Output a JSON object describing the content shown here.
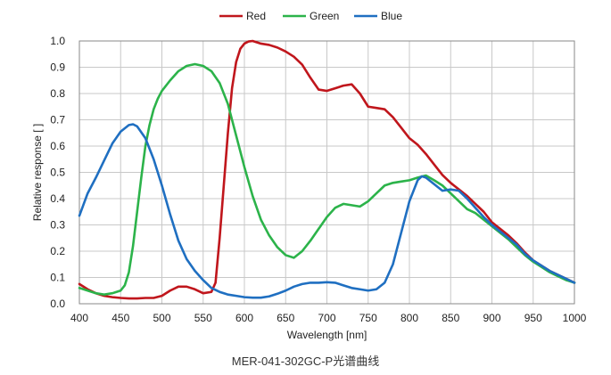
{
  "chart_data": {
    "type": "line",
    "title": "",
    "caption": "MER-041-302GC-P光谱曲线",
    "xlabel": "Wavelength [nm]",
    "ylabel": "Relative response [ ]",
    "xlim": [
      400,
      1000
    ],
    "ylim": [
      0.0,
      1.0
    ],
    "xticks": [
      400,
      450,
      500,
      550,
      600,
      650,
      700,
      750,
      800,
      850,
      900,
      950,
      1000
    ],
    "yticks": [
      "0.0",
      "0.1",
      "0.2",
      "0.3",
      "0.4",
      "0.5",
      "0.6",
      "0.7",
      "0.8",
      "0.9",
      "1.0"
    ],
    "grid": true,
    "legend_position": "top-center",
    "series": [
      {
        "name": "Red",
        "color": "#c0161c",
        "points": [
          [
            400,
            0.075
          ],
          [
            410,
            0.055
          ],
          [
            420,
            0.04
          ],
          [
            430,
            0.03
          ],
          [
            440,
            0.025
          ],
          [
            450,
            0.022
          ],
          [
            460,
            0.02
          ],
          [
            470,
            0.02
          ],
          [
            480,
            0.022
          ],
          [
            490,
            0.022
          ],
          [
            500,
            0.03
          ],
          [
            510,
            0.05
          ],
          [
            520,
            0.065
          ],
          [
            530,
            0.065
          ],
          [
            540,
            0.055
          ],
          [
            550,
            0.04
          ],
          [
            560,
            0.045
          ],
          [
            565,
            0.08
          ],
          [
            570,
            0.25
          ],
          [
            575,
            0.45
          ],
          [
            580,
            0.65
          ],
          [
            585,
            0.82
          ],
          [
            590,
            0.92
          ],
          [
            595,
            0.97
          ],
          [
            600,
            0.99
          ],
          [
            605,
            0.998
          ],
          [
            610,
            1.0
          ],
          [
            620,
            0.99
          ],
          [
            630,
            0.985
          ],
          [
            640,
            0.975
          ],
          [
            650,
            0.96
          ],
          [
            660,
            0.94
          ],
          [
            670,
            0.91
          ],
          [
            680,
            0.86
          ],
          [
            690,
            0.815
          ],
          [
            700,
            0.81
          ],
          [
            710,
            0.82
          ],
          [
            720,
            0.83
          ],
          [
            730,
            0.835
          ],
          [
            740,
            0.8
          ],
          [
            750,
            0.75
          ],
          [
            760,
            0.745
          ],
          [
            770,
            0.74
          ],
          [
            780,
            0.71
          ],
          [
            790,
            0.67
          ],
          [
            800,
            0.63
          ],
          [
            810,
            0.605
          ],
          [
            820,
            0.57
          ],
          [
            830,
            0.53
          ],
          [
            840,
            0.49
          ],
          [
            850,
            0.46
          ],
          [
            860,
            0.435
          ],
          [
            870,
            0.41
          ],
          [
            880,
            0.38
          ],
          [
            890,
            0.35
          ],
          [
            900,
            0.31
          ],
          [
            910,
            0.285
          ],
          [
            920,
            0.26
          ],
          [
            930,
            0.23
          ],
          [
            940,
            0.195
          ],
          [
            950,
            0.165
          ],
          [
            960,
            0.145
          ],
          [
            970,
            0.125
          ],
          [
            980,
            0.11
          ],
          [
            990,
            0.095
          ],
          [
            1000,
            0.08
          ]
        ]
      },
      {
        "name": "Green",
        "color": "#2cb34a",
        "points": [
          [
            400,
            0.06
          ],
          [
            410,
            0.05
          ],
          [
            420,
            0.04
          ],
          [
            430,
            0.035
          ],
          [
            440,
            0.04
          ],
          [
            450,
            0.05
          ],
          [
            455,
            0.07
          ],
          [
            460,
            0.12
          ],
          [
            465,
            0.22
          ],
          [
            470,
            0.35
          ],
          [
            475,
            0.48
          ],
          [
            480,
            0.6
          ],
          [
            485,
            0.68
          ],
          [
            490,
            0.74
          ],
          [
            495,
            0.78
          ],
          [
            500,
            0.81
          ],
          [
            510,
            0.85
          ],
          [
            520,
            0.885
          ],
          [
            530,
            0.905
          ],
          [
            540,
            0.912
          ],
          [
            550,
            0.905
          ],
          [
            560,
            0.885
          ],
          [
            570,
            0.84
          ],
          [
            580,
            0.76
          ],
          [
            590,
            0.64
          ],
          [
            600,
            0.52
          ],
          [
            610,
            0.41
          ],
          [
            620,
            0.32
          ],
          [
            630,
            0.26
          ],
          [
            640,
            0.215
          ],
          [
            650,
            0.185
          ],
          [
            660,
            0.175
          ],
          [
            670,
            0.2
          ],
          [
            680,
            0.24
          ],
          [
            690,
            0.285
          ],
          [
            700,
            0.33
          ],
          [
            710,
            0.365
          ],
          [
            720,
            0.38
          ],
          [
            730,
            0.375
          ],
          [
            740,
            0.37
          ],
          [
            750,
            0.39
          ],
          [
            760,
            0.42
          ],
          [
            770,
            0.45
          ],
          [
            780,
            0.46
          ],
          [
            790,
            0.465
          ],
          [
            800,
            0.47
          ],
          [
            810,
            0.48
          ],
          [
            820,
            0.488
          ],
          [
            830,
            0.47
          ],
          [
            840,
            0.45
          ],
          [
            850,
            0.42
          ],
          [
            860,
            0.39
          ],
          [
            870,
            0.36
          ],
          [
            880,
            0.345
          ],
          [
            890,
            0.32
          ],
          [
            900,
            0.295
          ],
          [
            910,
            0.27
          ],
          [
            920,
            0.245
          ],
          [
            930,
            0.215
          ],
          [
            940,
            0.185
          ],
          [
            950,
            0.16
          ],
          [
            960,
            0.14
          ],
          [
            970,
            0.12
          ],
          [
            980,
            0.105
          ],
          [
            990,
            0.09
          ],
          [
            1000,
            0.08
          ]
        ]
      },
      {
        "name": "Blue",
        "color": "#1f6fc1",
        "points": [
          [
            400,
            0.335
          ],
          [
            410,
            0.42
          ],
          [
            420,
            0.48
          ],
          [
            430,
            0.545
          ],
          [
            440,
            0.61
          ],
          [
            450,
            0.655
          ],
          [
            460,
            0.68
          ],
          [
            465,
            0.683
          ],
          [
            470,
            0.675
          ],
          [
            480,
            0.63
          ],
          [
            490,
            0.55
          ],
          [
            500,
            0.45
          ],
          [
            510,
            0.34
          ],
          [
            520,
            0.24
          ],
          [
            530,
            0.17
          ],
          [
            540,
            0.125
          ],
          [
            550,
            0.09
          ],
          [
            560,
            0.06
          ],
          [
            570,
            0.045
          ],
          [
            580,
            0.035
          ],
          [
            590,
            0.03
          ],
          [
            600,
            0.025
          ],
          [
            610,
            0.023
          ],
          [
            620,
            0.023
          ],
          [
            630,
            0.028
          ],
          [
            640,
            0.038
          ],
          [
            650,
            0.05
          ],
          [
            660,
            0.065
          ],
          [
            670,
            0.075
          ],
          [
            680,
            0.08
          ],
          [
            690,
            0.08
          ],
          [
            700,
            0.082
          ],
          [
            710,
            0.08
          ],
          [
            720,
            0.07
          ],
          [
            730,
            0.06
          ],
          [
            740,
            0.055
          ],
          [
            750,
            0.05
          ],
          [
            760,
            0.055
          ],
          [
            770,
            0.08
          ],
          [
            780,
            0.15
          ],
          [
            790,
            0.27
          ],
          [
            800,
            0.39
          ],
          [
            810,
            0.47
          ],
          [
            815,
            0.485
          ],
          [
            820,
            0.48
          ],
          [
            830,
            0.455
          ],
          [
            840,
            0.43
          ],
          [
            850,
            0.435
          ],
          [
            860,
            0.43
          ],
          [
            870,
            0.4
          ],
          [
            880,
            0.365
          ],
          [
            890,
            0.33
          ],
          [
            900,
            0.3
          ],
          [
            910,
            0.275
          ],
          [
            920,
            0.25
          ],
          [
            930,
            0.225
          ],
          [
            940,
            0.19
          ],
          [
            950,
            0.165
          ],
          [
            960,
            0.145
          ],
          [
            970,
            0.125
          ],
          [
            980,
            0.11
          ],
          [
            990,
            0.095
          ],
          [
            1000,
            0.08
          ]
        ]
      }
    ]
  }
}
